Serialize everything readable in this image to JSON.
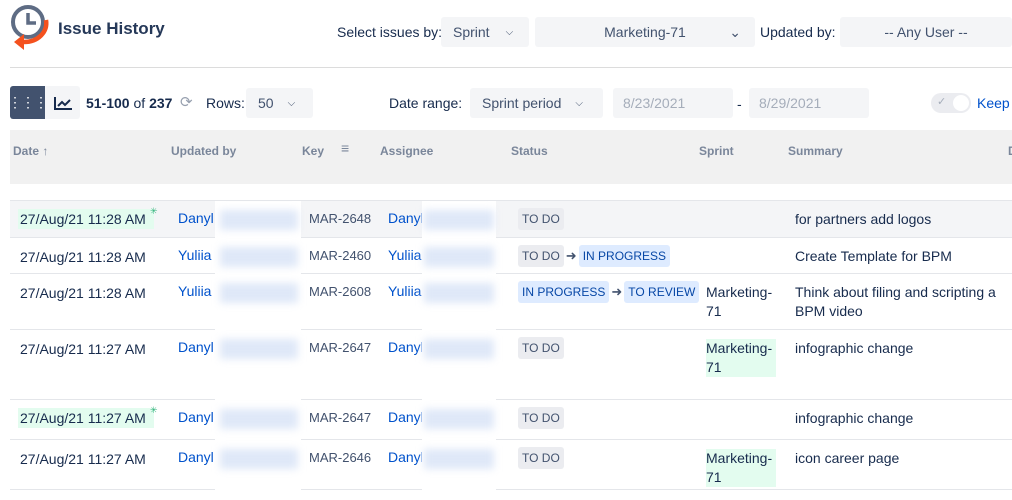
{
  "header": {
    "title": "Issue History",
    "select_by_label": "Select issues by:",
    "select_by_value": "Sprint",
    "sprint_value": "Marketing-71",
    "updated_by_label": "Updated by:",
    "updated_by_value": "-- Any User --"
  },
  "toolbar": {
    "range": "51-100",
    "of": "of",
    "total": "237",
    "rows_label": "Rows:",
    "rows_value": "50",
    "date_range_label": "Date range:",
    "date_range_value": "Sprint period",
    "date_from": "8/23/2021",
    "date_sep": "-",
    "date_to": "8/29/2021",
    "keep_label": "Keep"
  },
  "columns": {
    "date": "Date",
    "updated_by": "Updated by",
    "key": "Key",
    "assignee": "Assignee",
    "status": "Status",
    "sprint": "Sprint",
    "summary": "Summary",
    "extra": "D"
  },
  "rows": [
    {
      "date": "27/Aug/21 11:28 AM",
      "new": true,
      "updated_by": "Danyl",
      "key": "MAR-2648",
      "assignee": "Danyl",
      "from": "TO DO",
      "to": "",
      "sprint": "",
      "summary": "for partners add logos"
    },
    {
      "date": "27/Aug/21 11:28 AM",
      "new": false,
      "updated_by": "Yuliia",
      "key": "MAR-2460",
      "assignee": "Yuliia",
      "from": "TO DO",
      "to": "IN PROGRESS",
      "sprint": "",
      "summary": "Create Template for BPM"
    },
    {
      "date": "27/Aug/21 11:28 AM",
      "new": false,
      "updated_by": "Yuliia",
      "key": "MAR-2608",
      "assignee": "Yuliia",
      "from": "IN PROGRESS",
      "to": "TO REVIEW",
      "sprint": "Marketing-71",
      "summary": "Think about filing and scripting a BPM video"
    },
    {
      "date": "27/Aug/21 11:27 AM",
      "new": false,
      "updated_by": "Danyl",
      "key": "MAR-2647",
      "assignee": "Danyl",
      "from": "TO DO",
      "to": "",
      "sprint": "Marketing-71",
      "summary": "infographic change"
    },
    {
      "date": "27/Aug/21 11:27 AM",
      "new": true,
      "updated_by": "Danyl",
      "key": "MAR-2647",
      "assignee": "Danyl",
      "from": "TO DO",
      "to": "",
      "sprint": "",
      "summary": "infographic change"
    },
    {
      "date": "27/Aug/21 11:27 AM",
      "new": false,
      "updated_by": "Danyl",
      "key": "MAR-2646",
      "assignee": "Danyl",
      "from": "TO DO",
      "to": "",
      "sprint": "Marketing-71",
      "summary": "icon career page"
    }
  ],
  "colors": {
    "accent": "#0052cc",
    "new_highlight": "#e3fcef",
    "logo_orange": "#f4511e",
    "logo_blue": "#5e6c84"
  }
}
